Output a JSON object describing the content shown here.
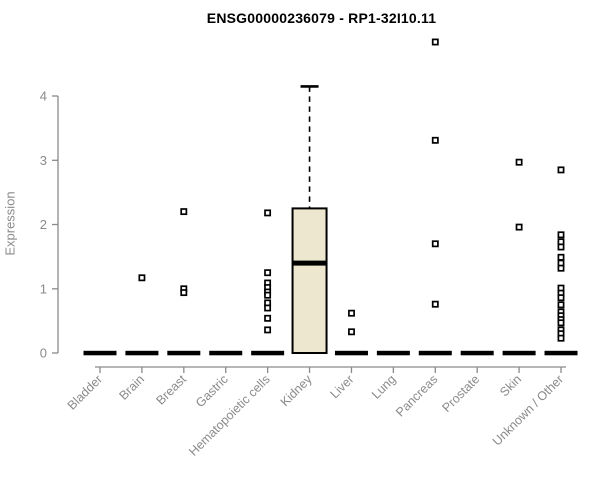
{
  "chart_data": {
    "type": "boxplot",
    "title": "ENSG00000236079 - RP1-32I10.11",
    "ylabel": "Expression",
    "xlabel": "",
    "yticks": [
      0,
      1,
      2,
      3,
      4
    ],
    "ylim": [
      0,
      4.2
    ],
    "grid": false,
    "legend": false,
    "categories": [
      "Bladder",
      "Brain",
      "Breast",
      "Gastric",
      "Hematopoietic cells",
      "Kidney",
      "Liver",
      "Lung",
      "Pancreas",
      "Prostate",
      "Skin",
      "Unknown / Other"
    ],
    "boxes": [
      {
        "category": "Bladder",
        "q1": 0,
        "median": 0,
        "q3": 0,
        "whisker_low": 0,
        "whisker_high": 0,
        "outliers": []
      },
      {
        "category": "Brain",
        "q1": 0,
        "median": 0,
        "q3": 0,
        "whisker_low": 0,
        "whisker_high": 0,
        "outliers": [
          1.17
        ]
      },
      {
        "category": "Breast",
        "q1": 0,
        "median": 0,
        "q3": 0,
        "whisker_low": 0,
        "whisker_high": 0,
        "outliers": [
          2.2,
          1.0,
          0.94
        ]
      },
      {
        "category": "Gastric",
        "q1": 0,
        "median": 0,
        "q3": 0,
        "whisker_low": 0,
        "whisker_high": 0,
        "outliers": []
      },
      {
        "category": "Hematopoietic cells",
        "q1": 0,
        "median": 0,
        "q3": 0,
        "whisker_low": 0,
        "whisker_high": 0,
        "outliers": [
          2.18,
          1.25,
          1.09,
          1.02,
          0.95,
          0.9,
          0.78,
          0.7,
          0.54,
          0.36
        ]
      },
      {
        "category": "Kidney",
        "q1": 0,
        "median": 1.4,
        "q3": 2.25,
        "whisker_low": 0,
        "whisker_high": 4.15,
        "outliers": []
      },
      {
        "category": "Liver",
        "q1": 0,
        "median": 0,
        "q3": 0,
        "whisker_low": 0,
        "whisker_high": 0,
        "outliers": [
          0.62,
          0.33
        ]
      },
      {
        "category": "Lung",
        "q1": 0,
        "median": 0,
        "q3": 0,
        "whisker_low": 0,
        "whisker_high": 0,
        "outliers": []
      },
      {
        "category": "Pancreas",
        "q1": 0,
        "median": 0,
        "q3": 0,
        "whisker_low": 0,
        "whisker_high": 0,
        "outliers": [
          4.84,
          3.31,
          1.7,
          0.76
        ]
      },
      {
        "category": "Prostate",
        "q1": 0,
        "median": 0,
        "q3": 0,
        "whisker_low": 0,
        "whisker_high": 0,
        "outliers": []
      },
      {
        "category": "Skin",
        "q1": 0,
        "median": 0,
        "q3": 0,
        "whisker_low": 0,
        "whisker_high": 0,
        "outliers": [
          2.97,
          1.96
        ]
      },
      {
        "category": "Unknown / Other",
        "q1": 0,
        "median": 0,
        "q3": 0,
        "whisker_low": 0,
        "whisker_high": 0,
        "outliers": [
          2.85,
          1.84,
          1.73,
          1.65,
          1.49,
          1.4,
          1.32,
          1.01,
          0.93,
          0.86,
          0.75,
          0.64,
          0.58,
          0.52,
          0.47,
          0.36,
          0.3,
          0.23
        ]
      }
    ],
    "colors": {
      "box_fill": "#ece7ce",
      "box_border": "#000000",
      "median": "#000000",
      "whisker": "#000000",
      "outlier_fill": "#ffffff",
      "outlier_border": "#000000",
      "axis": "#8a8a8a",
      "label": "#8a8a8a",
      "title": "#000000",
      "background": "#ffffff"
    }
  }
}
